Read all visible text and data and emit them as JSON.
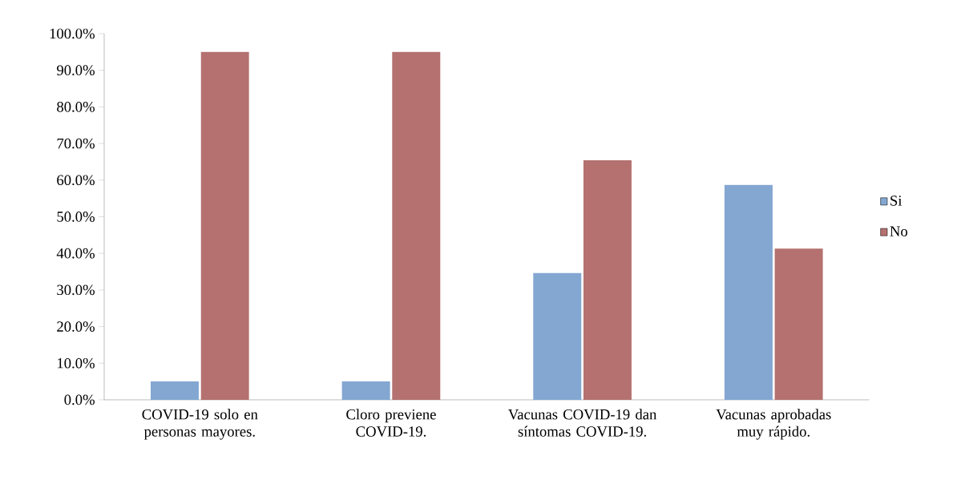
{
  "chart_data": {
    "type": "bar",
    "categories": [
      "COVID-19 solo en personas mayores.",
      "Cloro previene COVID-19.",
      "Vacunas COVID-19 dan síntomas COVID-19.",
      "Vacunas aprobadas muy rápido."
    ],
    "series": [
      {
        "name": "Si",
        "color": "#83a7d1",
        "values": [
          5.0,
          5.0,
          34.6,
          58.7
        ]
      },
      {
        "name": "No",
        "color": "#b4716f",
        "values": [
          95.0,
          95.0,
          65.4,
          41.3
        ]
      }
    ],
    "ylim": [
      0,
      100
    ],
    "yticks": [
      {
        "value": 0,
        "label": "0.0%"
      },
      {
        "value": 10,
        "label": "10.0%"
      },
      {
        "value": 20,
        "label": "20.0%"
      },
      {
        "value": 30,
        "label": "30.0%"
      },
      {
        "value": 40,
        "label": "40.0%"
      },
      {
        "value": 50,
        "label": "50.0%"
      },
      {
        "value": 60,
        "label": "60.0%"
      },
      {
        "value": 70,
        "label": "70.0%"
      },
      {
        "value": 80,
        "label": "80.0%"
      },
      {
        "value": 90,
        "label": "90.0%"
      },
      {
        "value": 100,
        "label": "100.0%"
      }
    ],
    "grid": false,
    "legend": "right"
  }
}
